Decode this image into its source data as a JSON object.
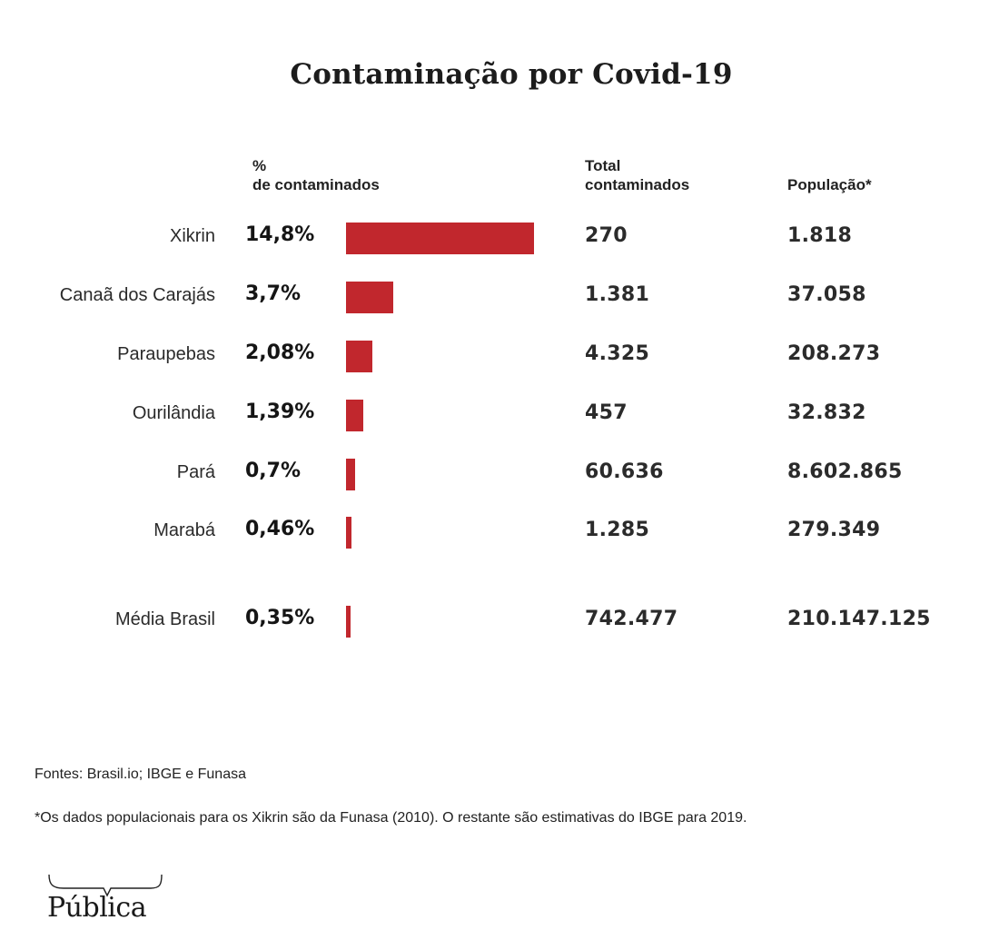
{
  "title": "Contaminação por Covid-19",
  "headers": {
    "pct_line1": "%",
    "pct_line2": "de contaminados",
    "total_line1": "Total",
    "total_line2": "contaminados",
    "pop": "População*"
  },
  "bar_color": "#C1272D",
  "chart_data": {
    "type": "bar",
    "orientation": "horizontal",
    "title": "Contaminação por Covid-19",
    "xlabel": "% de contaminados",
    "ylabel": "",
    "xlim": [
      0,
      14.8
    ],
    "grid": false,
    "legend": "none",
    "categories": [
      "Xikrin",
      "Canaã dos Carajás",
      "Paraupebas",
      "Ourilândia",
      "Pará",
      "Marabá",
      "Média Brasil"
    ],
    "values": [
      14.8,
      3.7,
      2.08,
      1.39,
      0.7,
      0.46,
      0.35
    ],
    "value_labels": [
      "14,8%",
      "3,7%",
      "2,08%",
      "1,39%",
      "0,7%",
      "0,46%",
      "0,35%"
    ],
    "table_columns": [
      "Total contaminados",
      "População*"
    ],
    "total_contaminados": [
      "270",
      "1.381",
      "4.325",
      "457",
      "60.636",
      "1.285",
      "742.477"
    ],
    "populacao": [
      "1.818",
      "37.058",
      "208.273",
      "32.832",
      "8.602.865",
      "279.349",
      "210.147.125"
    ]
  },
  "footer": {
    "sources": "Fontes: Brasil.io; IBGE e Funasa",
    "note": "*Os dados populacionais para os Xikrin são da Funasa (2010).  O restante são estimativas do IBGE para 2019."
  },
  "logo": {
    "text": "Pública"
  }
}
